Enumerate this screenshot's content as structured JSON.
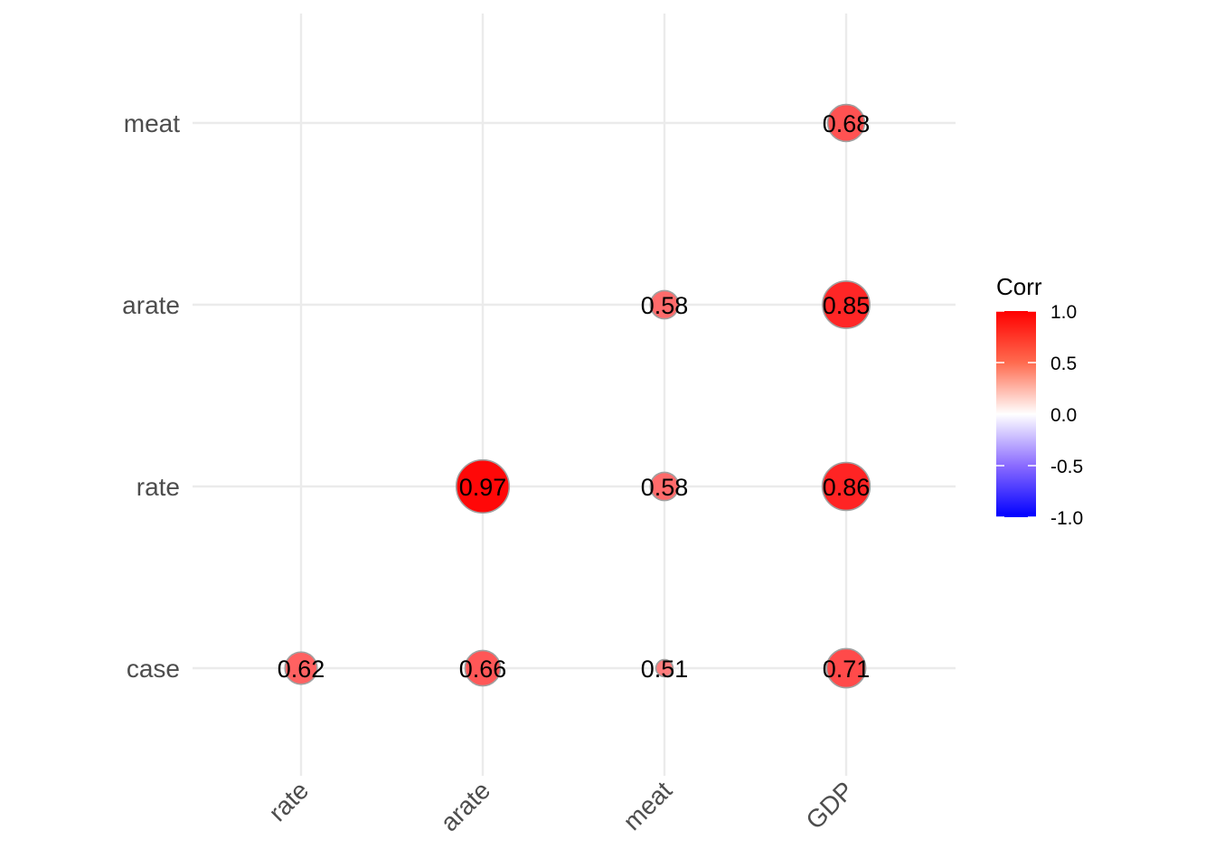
{
  "chart_data": {
    "type": "scatter",
    "subtype": "correlogram-circles",
    "x_categories": [
      "rate",
      "arate",
      "meat",
      "GDP"
    ],
    "y_categories": [
      "case",
      "rate",
      "arate",
      "meat"
    ],
    "points": [
      {
        "x": "rate",
        "y": "case",
        "value": 0.62,
        "label": "0.62"
      },
      {
        "x": "arate",
        "y": "case",
        "value": 0.66,
        "label": "0.66"
      },
      {
        "x": "meat",
        "y": "case",
        "value": 0.51,
        "label": "0.51"
      },
      {
        "x": "GDP",
        "y": "case",
        "value": 0.71,
        "label": "0.71"
      },
      {
        "x": "arate",
        "y": "rate",
        "value": 0.97,
        "label": "0.97"
      },
      {
        "x": "meat",
        "y": "rate",
        "value": 0.58,
        "label": "0.58"
      },
      {
        "x": "GDP",
        "y": "rate",
        "value": 0.86,
        "label": "0.86"
      },
      {
        "x": "meat",
        "y": "arate",
        "value": 0.58,
        "label": "0.58"
      },
      {
        "x": "GDP",
        "y": "arate",
        "value": 0.85,
        "label": "0.85"
      },
      {
        "x": "GDP",
        "y": "meat",
        "value": 0.68,
        "label": "0.68"
      }
    ],
    "size_range": [
      0.5,
      1.0
    ],
    "legend": {
      "title": "Corr",
      "placement": "right",
      "range": [
        -1,
        1
      ],
      "ticks": [
        "1.0",
        "0.5",
        "0.0",
        "-0.5",
        "-1.0"
      ],
      "colors": {
        "low": "#0000ff",
        "mid": "#ffffff",
        "high": "#ff0000"
      }
    },
    "grid": true,
    "circle_border_color": "#a0a0a0",
    "grid_color": "#ebebeb"
  }
}
